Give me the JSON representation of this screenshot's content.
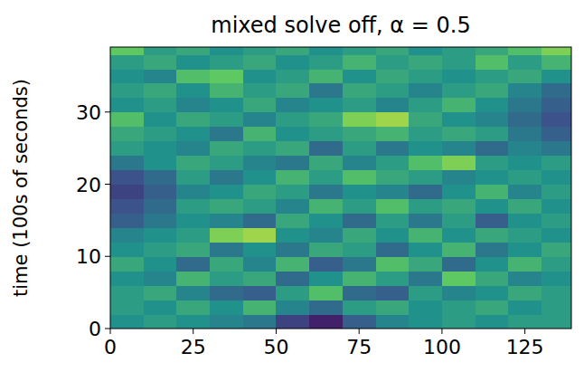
{
  "chart_data": {
    "type": "heatmap",
    "title": "mixed solve off, α = 0.5",
    "y_label": "time (100s of seconds)",
    "xlim": [
      0,
      139
    ],
    "ylim": [
      0,
      39
    ],
    "xticks": [
      0,
      25,
      50,
      75,
      100,
      125
    ],
    "yticks": [
      0,
      10,
      20,
      30
    ],
    "color_range": [
      0,
      1
    ],
    "x": [
      5,
      15,
      25,
      35,
      45,
      55,
      65,
      75,
      85,
      95,
      105,
      115,
      125,
      135
    ],
    "y": [
      1,
      3,
      5,
      7,
      9,
      11,
      13,
      15,
      17,
      19,
      21,
      23,
      25,
      27,
      29,
      31,
      33,
      35,
      37,
      39
    ],
    "cells": [
      [
        0.5,
        0.55,
        0.5,
        0.45,
        0.4,
        0.2,
        0.1,
        0.3,
        0.45,
        0.5,
        0.55,
        0.5,
        0.55,
        0.55
      ],
      [
        0.55,
        0.5,
        0.6,
        0.5,
        0.65,
        0.45,
        0.35,
        0.55,
        0.6,
        0.5,
        0.55,
        0.6,
        0.5,
        0.55
      ],
      [
        0.55,
        0.6,
        0.45,
        0.35,
        0.3,
        0.55,
        0.7,
        0.35,
        0.3,
        0.55,
        0.45,
        0.5,
        0.6,
        0.55
      ],
      [
        0.5,
        0.45,
        0.65,
        0.55,
        0.6,
        0.35,
        0.5,
        0.65,
        0.55,
        0.4,
        0.75,
        0.6,
        0.45,
        0.5
      ],
      [
        0.6,
        0.5,
        0.35,
        0.6,
        0.45,
        0.65,
        0.3,
        0.4,
        0.7,
        0.6,
        0.35,
        0.5,
        0.65,
        0.55
      ],
      [
        0.5,
        0.55,
        0.6,
        0.4,
        0.5,
        0.4,
        0.6,
        0.55,
        0.35,
        0.5,
        0.65,
        0.4,
        0.5,
        0.6
      ],
      [
        0.45,
        0.5,
        0.55,
        0.8,
        0.85,
        0.5,
        0.45,
        0.6,
        0.5,
        0.65,
        0.5,
        0.6,
        0.55,
        0.5
      ],
      [
        0.3,
        0.4,
        0.5,
        0.45,
        0.35,
        0.6,
        0.5,
        0.35,
        0.55,
        0.4,
        0.55,
        0.3,
        0.5,
        0.55
      ],
      [
        0.25,
        0.35,
        0.55,
        0.6,
        0.55,
        0.45,
        0.65,
        0.55,
        0.7,
        0.55,
        0.6,
        0.5,
        0.6,
        0.5
      ],
      [
        0.2,
        0.3,
        0.45,
        0.5,
        0.6,
        0.55,
        0.4,
        0.5,
        0.45,
        0.35,
        0.5,
        0.65,
        0.45,
        0.55
      ],
      [
        0.25,
        0.35,
        0.55,
        0.4,
        0.5,
        0.65,
        0.55,
        0.7,
        0.6,
        0.55,
        0.45,
        0.5,
        0.55,
        0.5
      ],
      [
        0.4,
        0.5,
        0.6,
        0.55,
        0.45,
        0.4,
        0.6,
        0.45,
        0.55,
        0.7,
        0.8,
        0.55,
        0.5,
        0.55
      ],
      [
        0.55,
        0.5,
        0.45,
        0.6,
        0.55,
        0.6,
        0.35,
        0.55,
        0.4,
        0.5,
        0.45,
        0.35,
        0.45,
        0.4
      ],
      [
        0.6,
        0.55,
        0.5,
        0.4,
        0.65,
        0.5,
        0.55,
        0.6,
        0.65,
        0.55,
        0.6,
        0.55,
        0.4,
        0.3
      ],
      [
        0.7,
        0.5,
        0.6,
        0.55,
        0.45,
        0.55,
        0.6,
        0.8,
        0.85,
        0.6,
        0.5,
        0.45,
        0.35,
        0.25
      ],
      [
        0.5,
        0.55,
        0.45,
        0.5,
        0.6,
        0.45,
        0.5,
        0.55,
        0.45,
        0.55,
        0.65,
        0.5,
        0.4,
        0.3
      ],
      [
        0.55,
        0.6,
        0.5,
        0.65,
        0.55,
        0.6,
        0.4,
        0.6,
        0.55,
        0.45,
        0.55,
        0.6,
        0.45,
        0.35
      ],
      [
        0.5,
        0.45,
        0.7,
        0.75,
        0.5,
        0.55,
        0.65,
        0.5,
        0.6,
        0.55,
        0.5,
        0.55,
        0.6,
        0.5
      ],
      [
        0.55,
        0.6,
        0.5,
        0.55,
        0.6,
        0.5,
        0.55,
        0.65,
        0.55,
        0.6,
        0.55,
        0.7,
        0.55,
        0.65
      ],
      [
        0.75,
        0.55,
        0.6,
        0.5,
        0.55,
        0.6,
        0.5,
        0.55,
        0.6,
        0.5,
        0.55,
        0.6,
        0.7,
        0.8
      ]
    ]
  }
}
